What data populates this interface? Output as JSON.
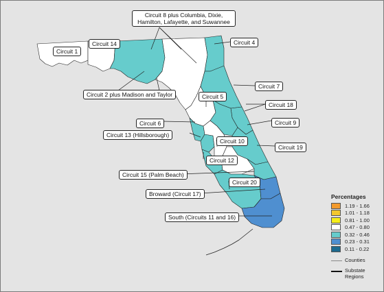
{
  "legend": {
    "title": "Percentages",
    "items": [
      {
        "label": "1.19 - 1.66",
        "color": "#f39a2c"
      },
      {
        "label": "1.01 - 1.18",
        "color": "#f2c72e"
      },
      {
        "label": "0.81 - 1.00",
        "color": "#f6ee1a"
      },
      {
        "label": "0.47 - 0.80",
        "color": "#ffffff"
      },
      {
        "label": "0.32 - 0.46",
        "color": "#66cccc"
      },
      {
        "label": "0.23 - 0.31",
        "color": "#4f8fd0"
      },
      {
        "label": "0.11 - 0.22",
        "color": "#1d6a8f"
      }
    ],
    "counties_label": "Counties",
    "substate_label": "Substate Regions"
  },
  "callouts": {
    "c1": "Circuit 1",
    "c14": "Circuit 14",
    "c8": "Circuit 8 plus Columbia, Dixie, Hamilton, Lafayette, and Suwannee",
    "c4": "Circuit 4",
    "c2": "Circuit 2 plus Madison and Taylor",
    "c7": "Circuit 7",
    "c5": "Circuit 5",
    "c18": "Circuit 18",
    "c6": "Circuit 6",
    "c9": "Circuit 9",
    "c13": "Circuit 13 (Hillsborough)",
    "c10": "Circuit 10",
    "c19": "Circuit 19",
    "c12": "Circuit 12",
    "c15": "Circuit 15 (Palm Beach)",
    "c20": "Circuit 20",
    "c17": "Broward (Circuit 17)",
    "c1116": "South (Circuits 11 and 16)"
  }
}
